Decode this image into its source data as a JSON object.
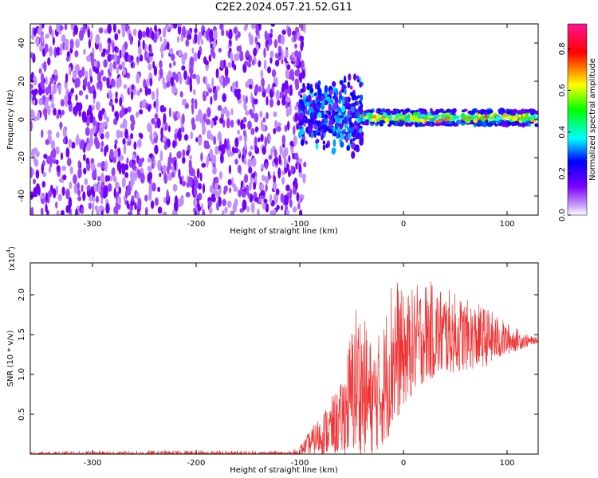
{
  "title": "C2E2.2024.057.21.52.G11",
  "colors": {
    "spectrogram_bg": "#ffffff",
    "noise": "#6a0ef0",
    "snr_line": "#ee3333",
    "axis": "#000000"
  },
  "chart_data": [
    {
      "type": "heatmap",
      "name": "spectrogram",
      "xlabel": "Height of straight line (km)",
      "ylabel": "Frequency (Hz)",
      "xlim": [
        -360,
        130
      ],
      "ylim": [
        -50,
        50
      ],
      "xticks": [
        -300,
        -200,
        -100,
        0,
        100
      ],
      "xtick_labels": [
        "-300",
        "-200",
        "-100",
        "0",
        "100"
      ],
      "yticks": [
        -40,
        -20,
        0,
        20,
        40
      ],
      "ytick_labels": [
        "-40",
        "-20",
        "0",
        "20",
        "40"
      ],
      "grid": false,
      "colorbar": {
        "label": "Normalized spectral amplitude",
        "range": [
          0.0,
          0.92
        ],
        "ticks": [
          0.0,
          0.2,
          0.4,
          0.6,
          0.8
        ],
        "tick_labels": [
          "0.0",
          "0.2",
          "0.4",
          "0.6",
          "0.8"
        ],
        "colormap": [
          "#ffffff",
          "#7a00ff",
          "#0000ff",
          "#00ffff",
          "#00ff00",
          "#ffff00",
          "#ff0000",
          "#ff1493"
        ]
      },
      "regions": [
        {
          "x": [
            -360,
            -100
          ],
          "description_level": 0.12,
          "freq_span": [
            -50,
            50
          ]
        },
        {
          "x": [
            -100,
            -40
          ],
          "level": 0.25,
          "freq_span": [
            -15,
            25
          ]
        },
        {
          "x": [
            -40,
            130
          ],
          "level": 0.45,
          "freq_span": [
            -4,
            5
          ]
        }
      ]
    },
    {
      "type": "line",
      "name": "snr",
      "xlabel": "Height of straight line (km)",
      "ylabel": "SNR (10 * v/v)",
      "y_multiplier_label": "(x10",
      "y_multiplier_exp": "4",
      "y_multiplier_close": ")",
      "xlim": [
        -360,
        130
      ],
      "ylim": [
        0,
        24000
      ],
      "xticks": [
        -300,
        -200,
        -100,
        0,
        100
      ],
      "xtick_labels": [
        "-300",
        "-200",
        "-100",
        "0",
        "100"
      ],
      "yticks": [
        5000,
        10000,
        15000,
        20000
      ],
      "ytick_labels": [
        "0.5",
        "1.0",
        "1.5",
        "2.0"
      ],
      "grid": false,
      "envelope": {
        "x": [
          -360,
          -200,
          -110,
          -100,
          -80,
          -60,
          -45,
          -30,
          -20,
          -10,
          0,
          20,
          40,
          60,
          80,
          100,
          120,
          130
        ],
        "max": [
          300,
          500,
          400,
          1000,
          5000,
          9000,
          20000,
          14000,
          16000,
          24000,
          20000,
          22000,
          21000,
          19500,
          18500,
          16500,
          15000,
          14500
        ],
        "min": [
          0,
          0,
          0,
          0,
          0,
          0,
          0,
          0,
          1000,
          3000,
          6000,
          9000,
          10000,
          10500,
          11000,
          12500,
          13500,
          14000
        ]
      }
    }
  ]
}
